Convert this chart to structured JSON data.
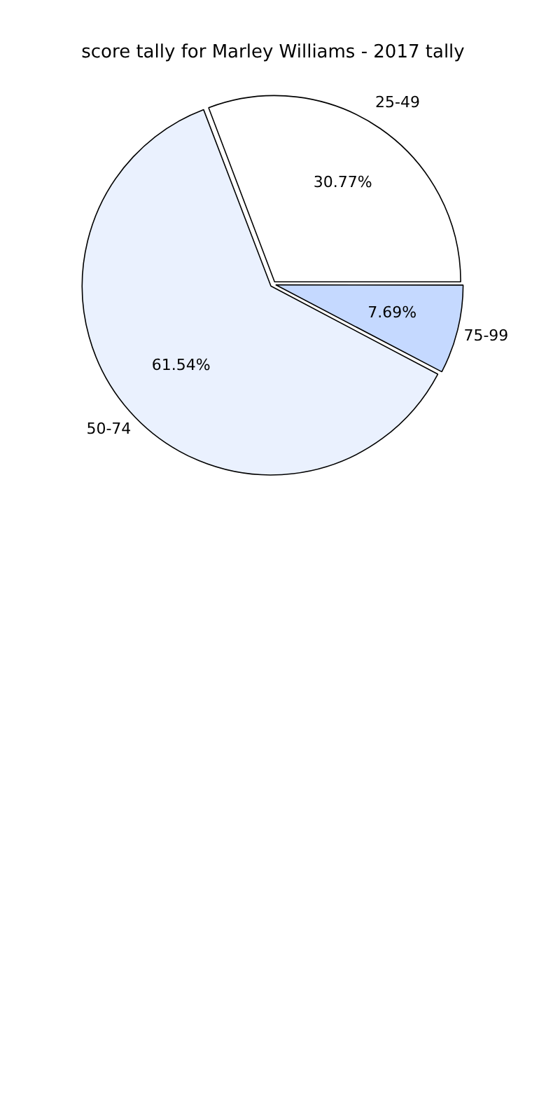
{
  "chart_data": {
    "type": "pie",
    "title": "score tally for Marley Williams - 2017 tally",
    "categories": [
      "25-49",
      "75-99",
      "50-74"
    ],
    "values": [
      30.77,
      7.69,
      61.54
    ],
    "colors": [
      "#ffffff",
      "#c5d9ff",
      "#eaf1fe"
    ],
    "value_labels": [
      "30.77%",
      "7.69%",
      "61.54%"
    ],
    "legend": false
  }
}
